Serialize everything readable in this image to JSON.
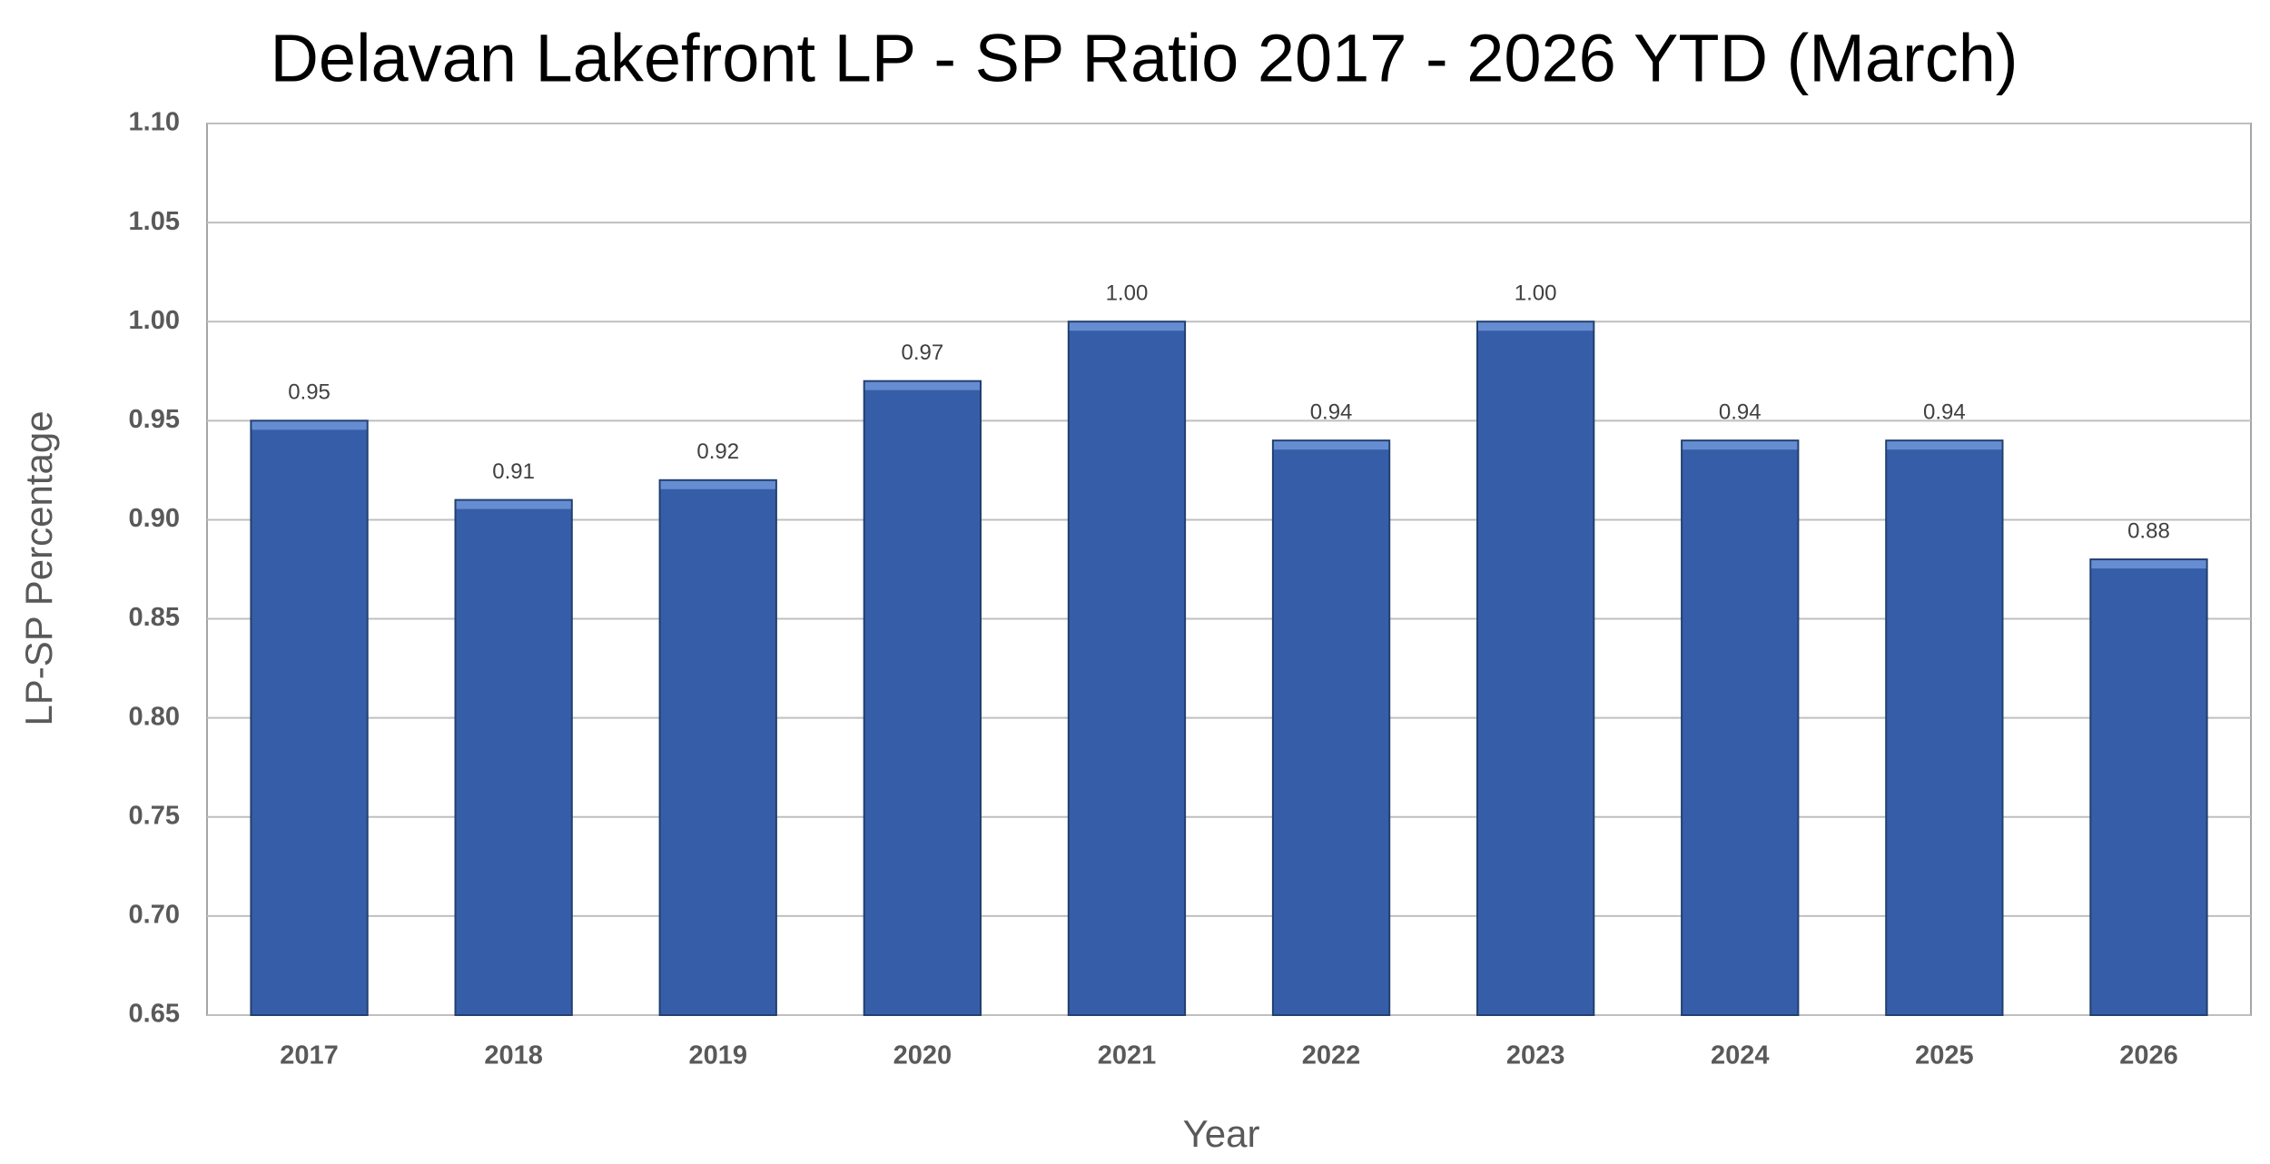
{
  "chart_data": {
    "type": "bar",
    "title": "Delavan Lakefront LP - SP Ratio 2017 - 2026 YTD (March)",
    "x_label": "Year",
    "y_label": "LP-SP Percentage",
    "categories": [
      "2017",
      "2018",
      "2019",
      "2020",
      "2021",
      "2022",
      "2023",
      "2024",
      "2025",
      "2026"
    ],
    "values": [
      0.95,
      0.91,
      0.92,
      0.97,
      1.0,
      0.94,
      1.0,
      0.94,
      0.94,
      0.88
    ],
    "value_labels": [
      "0.95",
      "0.91",
      "0.92",
      "0.97",
      "1.00",
      "0.94",
      "1.00",
      "0.94",
      "0.94",
      "0.88"
    ],
    "color": "#365ea8",
    "ylim": [
      0.65,
      1.1
    ],
    "yticks": [
      {
        "value": 0.65,
        "label": "0.65"
      },
      {
        "value": 0.7,
        "label": "0.70"
      },
      {
        "value": 0.75,
        "label": "0.75"
      },
      {
        "value": 0.8,
        "label": "0.80"
      },
      {
        "value": 0.85,
        "label": "0.85"
      },
      {
        "value": 0.9,
        "label": "0.90"
      },
      {
        "value": 0.95,
        "label": "0.95"
      },
      {
        "value": 1.0,
        "label": "1.00"
      },
      {
        "value": 1.05,
        "label": "1.05"
      },
      {
        "value": 1.1,
        "label": "1.10"
      }
    ],
    "grid": true
  }
}
